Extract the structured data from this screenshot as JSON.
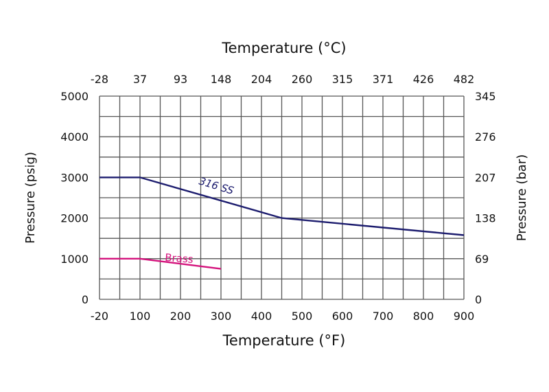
{
  "chart_data": {
    "type": "line",
    "title": "",
    "xlabel_bottom": "Temperature (°F)",
    "xlabel_top": "Temperature (°C)",
    "ylabel_left": "Pressure  (psig)",
    "ylabel_right": "Pressure (bar)",
    "x_ticks_bottom": [
      "-20",
      "100",
      "200",
      "300",
      "400",
      "500",
      "600",
      "700",
      "800",
      "900"
    ],
    "x_ticks_top": [
      "-28",
      "37",
      "93",
      "148",
      "204",
      "260",
      "315",
      "371",
      "426",
      "482"
    ],
    "y_ticks_left": [
      "0",
      "1000",
      "2000",
      "3000",
      "4000",
      "5000"
    ],
    "y_ticks_right": [
      "0",
      "69",
      "138",
      "207",
      "276",
      "345"
    ],
    "xlim": [
      -20,
      900
    ],
    "ylim": [
      0,
      5000
    ],
    "grid": true,
    "series": [
      {
        "name": "316 SS",
        "color": "#1c1c6e",
        "x": [
          -20,
          100,
          450,
          900
        ],
        "y": [
          3000,
          3000,
          2000,
          1580
        ]
      },
      {
        "name": "Brass",
        "color": "#d4127c",
        "x": [
          -20,
          100,
          300
        ],
        "y": [
          1000,
          1000,
          750
        ]
      }
    ]
  }
}
